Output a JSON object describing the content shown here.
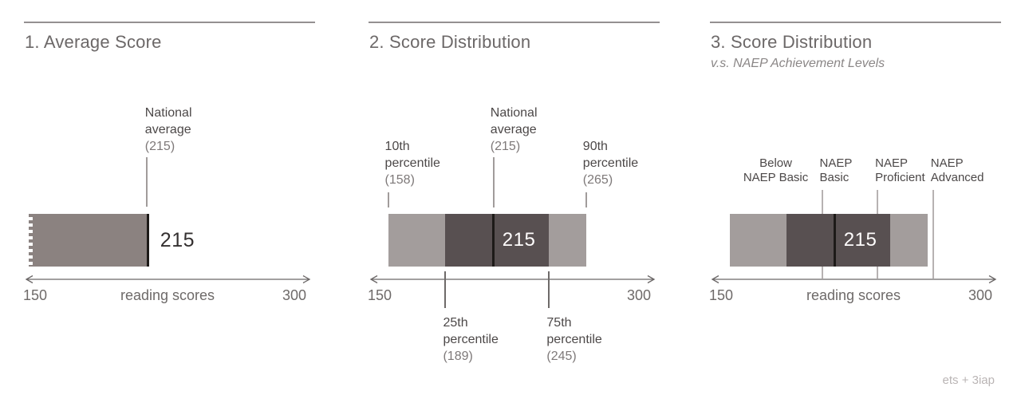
{
  "page": {
    "background": "#ffffff",
    "attribution": "ets + 3iap"
  },
  "colors": {
    "bar_light": "#a39d9c",
    "bar_dark": "#585051",
    "bar_average_only": "#8b8280",
    "average_marker": "#1d1a18",
    "leader_line": "#a19c9b",
    "naep_threshold_line": "#b7b2b2",
    "axis": "#6b6767",
    "title_text": "#6c6868",
    "annotation_text": "#4c4848",
    "annotation_value_text": "#7e7979",
    "attribution_text": "#bab5b5"
  },
  "chart_data": [
    {
      "type": "bar",
      "panel": 1,
      "title": "1. Average Score",
      "xlabel": "reading scores",
      "xlim": [
        150,
        300
      ],
      "axis_ticks": {
        "left": "150",
        "right": "300"
      },
      "average": 215,
      "average_display": "215",
      "bar": {
        "from": 150,
        "to": 215,
        "torn_left_edge": true
      },
      "annotation": {
        "line1": "National",
        "line2": "average",
        "line3": "(215)",
        "at": 215
      }
    },
    {
      "type": "bar",
      "panel": 2,
      "title": "2. Score Distribution",
      "xlabel": "",
      "xlim": [
        150,
        300
      ],
      "axis_ticks": {
        "left": "150",
        "right": "300"
      },
      "average": 215,
      "average_display": "215",
      "percentiles": {
        "p10": 158,
        "p25": 189,
        "p75": 245,
        "p90": 265
      },
      "segments": [
        {
          "from": 158,
          "to": 189,
          "tone": "light"
        },
        {
          "from": 189,
          "to": 245,
          "tone": "dark"
        },
        {
          "from": 245,
          "to": 265,
          "tone": "light"
        }
      ],
      "labels_above": [
        {
          "line1": "10th",
          "line2": "percentile",
          "line3": "(158)",
          "at": 158
        },
        {
          "line1": "National",
          "line2": "average",
          "line3": "(215)",
          "at": 215
        },
        {
          "line1": "90th",
          "line2": "percentile",
          "line3": "(265)",
          "at": 265
        }
      ],
      "labels_below": [
        {
          "line1": "25th",
          "line2": "percentile",
          "line3": "(189)",
          "at": 189
        },
        {
          "line1": "75th",
          "line2": "percentile",
          "line3": "(245)",
          "at": 245
        }
      ]
    },
    {
      "type": "bar",
      "panel": 3,
      "title": "3. Score Distribution",
      "subtitle": "v.s. NAEP Achievement Levels",
      "xlabel": "reading scores",
      "xlim": [
        150,
        300
      ],
      "axis_ticks": {
        "left": "150",
        "right": "300"
      },
      "average": 215,
      "average_display": "215",
      "percentiles": {
        "p10": 158,
        "p25": 189,
        "p75": 245,
        "p90": 265
      },
      "segments": [
        {
          "from": 158,
          "to": 189,
          "tone": "light"
        },
        {
          "from": 189,
          "to": 245,
          "tone": "dark"
        },
        {
          "from": 245,
          "to": 265,
          "tone": "light"
        }
      ],
      "naep_levels": [
        {
          "line1": "Below",
          "line2": "NAEP Basic",
          "region_from": 158,
          "region_to": 208
        },
        {
          "line1": "NAEP",
          "line2": "Basic",
          "at": 208
        },
        {
          "line1": "NAEP",
          "line2": "Proficient",
          "at": 238
        },
        {
          "line1": "NAEP",
          "line2": "Advanced",
          "at": 268
        }
      ]
    }
  ]
}
